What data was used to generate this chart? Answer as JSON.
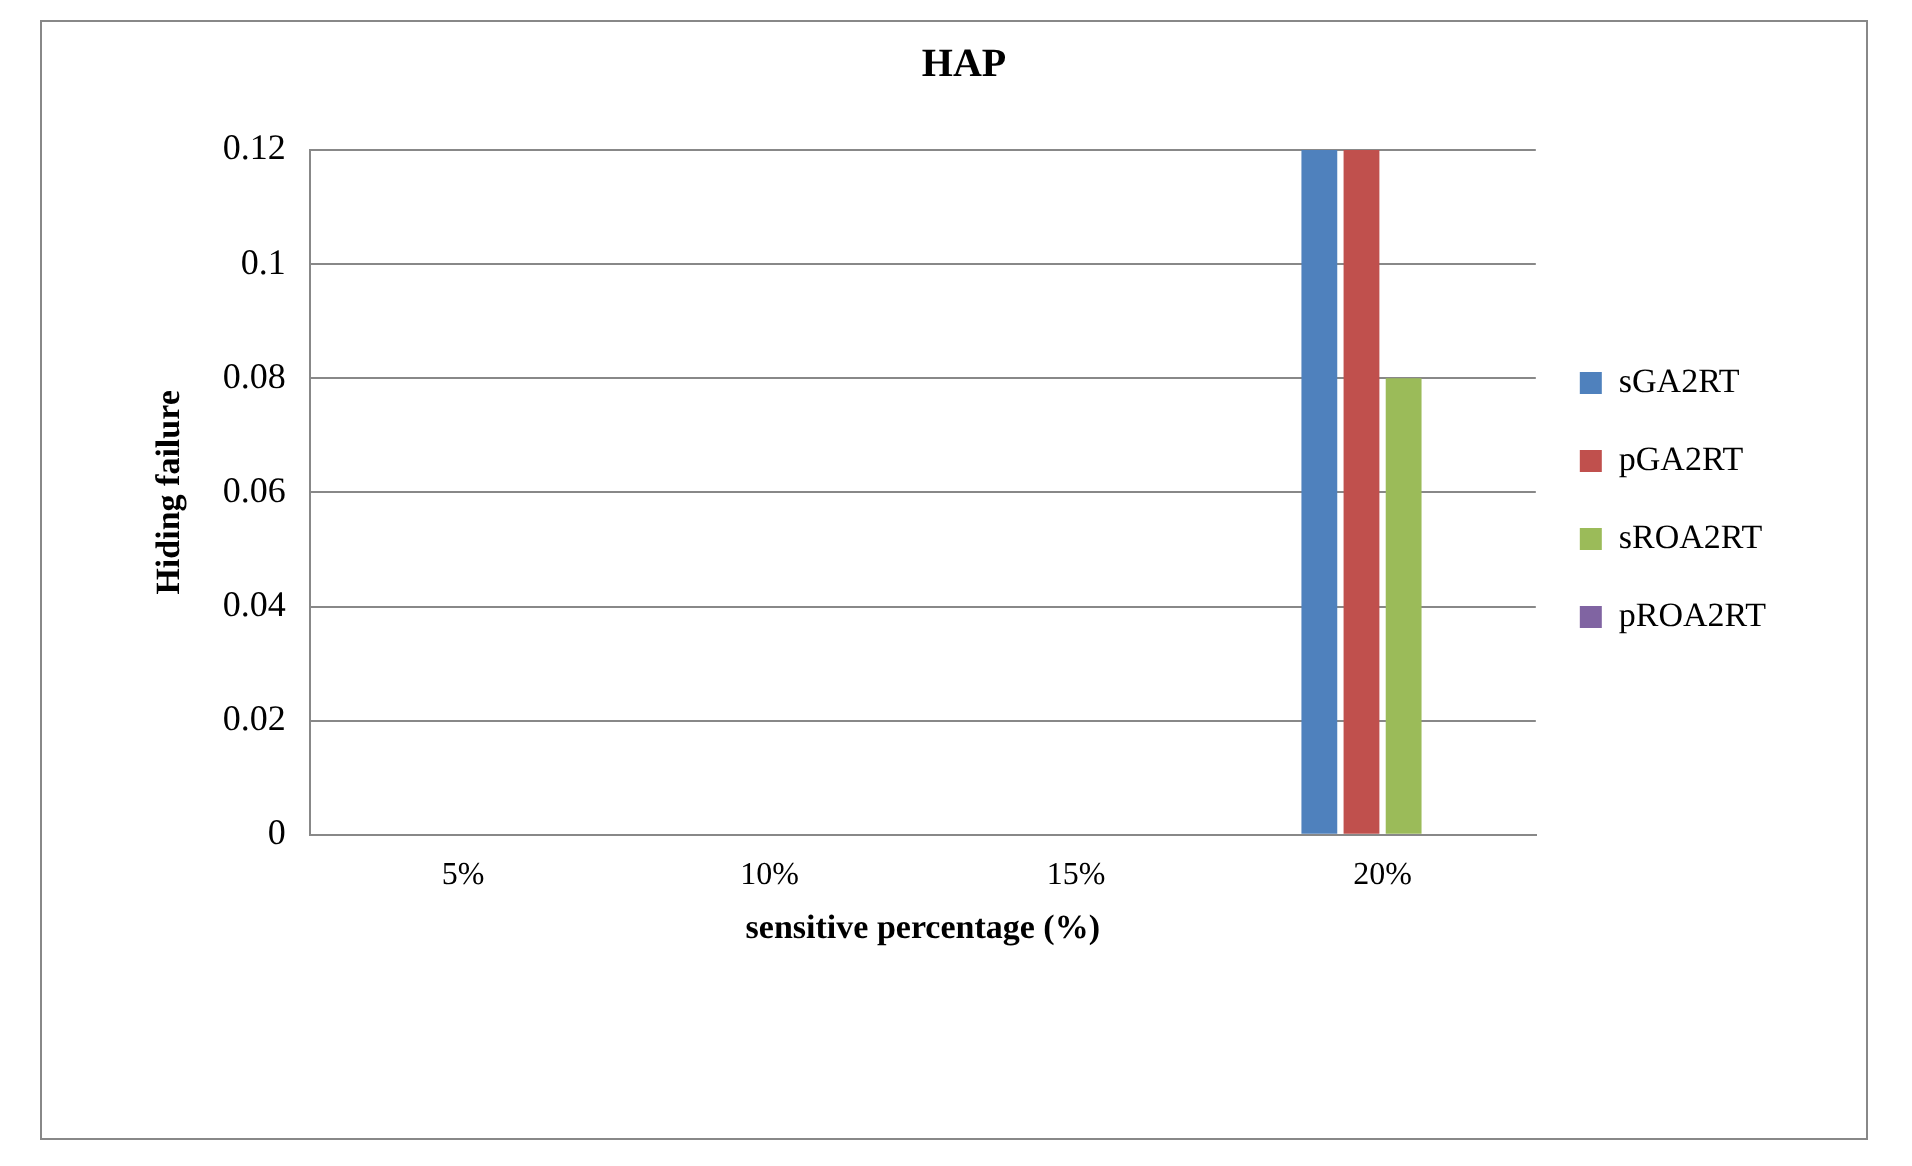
{
  "chart_data": {
    "type": "bar",
    "title": "HAP",
    "xlabel": "sensitive percentage (%)",
    "ylabel": "Hiding failure",
    "categories": [
      "5%",
      "10%",
      "15%",
      "20%"
    ],
    "series": [
      {
        "name": "sGA2RT",
        "color": "#4f81bd",
        "values": [
          0,
          0,
          0,
          0.12
        ]
      },
      {
        "name": "pGA2RT",
        "color": "#c0504d",
        "values": [
          0,
          0,
          0,
          0.12
        ]
      },
      {
        "name": "sROA2RT",
        "color": "#9bbb59",
        "values": [
          0,
          0,
          0,
          0.08
        ]
      },
      {
        "name": "pROA2RT",
        "color": "#8064a2",
        "values": [
          0,
          0,
          0,
          0
        ]
      }
    ],
    "ylim": [
      0,
      0.12
    ],
    "yticks": [
      0,
      0.02,
      0.04,
      0.06,
      0.08,
      0.1,
      0.12
    ],
    "grid": "y",
    "legend": "right"
  }
}
